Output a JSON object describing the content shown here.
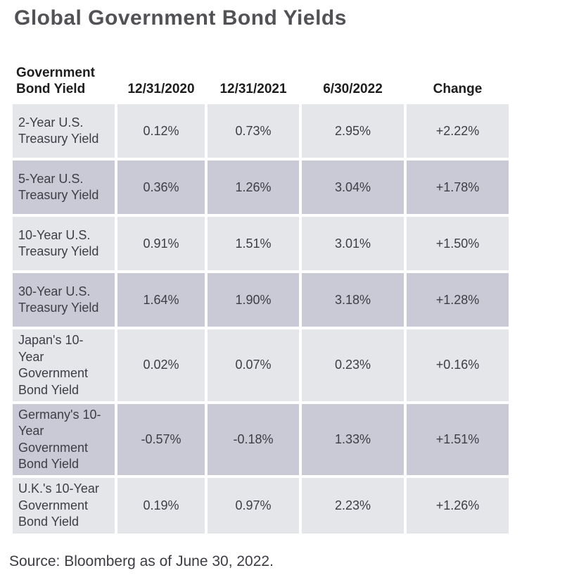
{
  "page": {
    "title": "Global Government Bond Yields",
    "source_note": "Source: Bloomberg as of June 30, 2022."
  },
  "colors": {
    "row_light": "#E5E6EA",
    "row_dark": "#C9CAD5",
    "title_text": "#515156",
    "header_text": "#1D1D1D",
    "body_text": "#3D3D46",
    "source_text": "#3C3C43"
  },
  "chart_data": {
    "type": "table",
    "title": "Global Government Bond Yields",
    "columns": [
      "Government Bond Yield",
      "12/31/2020",
      "12/31/2021",
      "6/30/2022",
      "Change"
    ],
    "rows": [
      {
        "label": "2-Year U.S. Treasury Yield",
        "values": [
          "0.12%",
          "0.73%",
          "2.95%",
          "+2.22%"
        ]
      },
      {
        "label": "5-Year U.S. Treasury Yield",
        "values": [
          "0.36%",
          "1.26%",
          "3.04%",
          "+1.78%"
        ]
      },
      {
        "label": "10-Year U.S. Treasury Yield",
        "values": [
          "0.91%",
          "1.51%",
          "3.01%",
          "+1.50%"
        ]
      },
      {
        "label": "30-Year U.S. Treasury Yield",
        "values": [
          "1.64%",
          "1.90%",
          "3.18%",
          "+1.28%"
        ]
      },
      {
        "label": "Japan's 10-Year Government Bond Yield",
        "values": [
          "0.02%",
          "0.07%",
          "0.23%",
          "+0.16%"
        ]
      },
      {
        "label": "Germany's 10-Year Government Bond Yield",
        "values": [
          "-0.57%",
          "-0.18%",
          "1.33%",
          "+1.51%"
        ]
      },
      {
        "label": "U.K.'s 10-Year Government Bond Yield",
        "values": [
          "0.19%",
          "0.97%",
          "2.23%",
          "+1.26%"
        ]
      }
    ],
    "source": "Source: Bloomberg as of June 30, 2022.",
    "layout_hints": {
      "row_striping": "alternating light/dark starting light",
      "value_alignment": "center",
      "label_alignment": "left"
    }
  }
}
